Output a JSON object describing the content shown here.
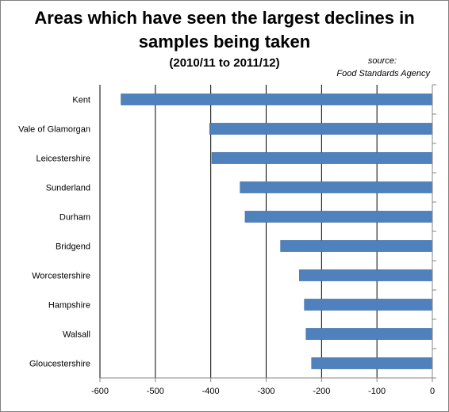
{
  "chart_data": {
    "type": "bar",
    "orientation": "horizontal",
    "title": "Areas which have seen the largest declines in samples being taken",
    "subtitle": "(2010/11 to 2011/12)",
    "source_label": "source:",
    "source": "Food Standards Agency",
    "categories": [
      "Kent",
      "Vale of Glamorgan",
      "Leicestershire",
      "Sunderland",
      "Durham",
      "Bridgend",
      "Worcestershire",
      "Hampshire",
      "Walsall",
      "Gloucestershire"
    ],
    "values": [
      -562,
      -402,
      -398,
      -347,
      -338,
      -274,
      -240,
      -231,
      -228,
      -218
    ],
    "xlim": [
      -600,
      0
    ],
    "xticks": [
      -600,
      -500,
      -400,
      -300,
      -200,
      -100,
      0
    ],
    "grid": true,
    "bar_color": "#4f81bd"
  },
  "header": {
    "title_line1": "Areas which have seen the largest declines in",
    "title_line2": "samples being taken",
    "subtitle": "(2010/11 to 2011/12)"
  }
}
